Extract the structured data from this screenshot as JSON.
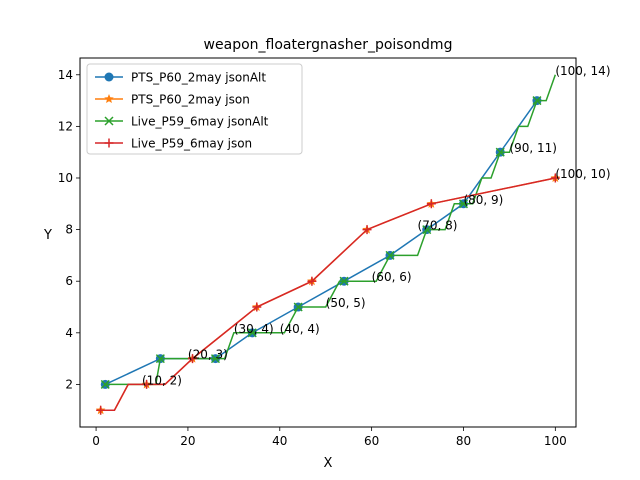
{
  "chart_data": {
    "type": "line",
    "title": "weapon_floatergnasher_poisondmg",
    "xlabel": "X",
    "ylabel": "Y",
    "xlim": [
      -3.5,
      104.5
    ],
    "ylim": [
      0.35,
      14.65
    ],
    "xticks": [
      0,
      20,
      40,
      60,
      80,
      100
    ],
    "yticks": [
      2,
      4,
      6,
      8,
      10,
      12,
      14
    ],
    "grid": false,
    "legend_position": "top-left",
    "series": [
      {
        "name": "PTS_P60_2may jsonAlt",
        "color": "#1f77b4",
        "marker": "circle",
        "points": [
          [
            2,
            2
          ],
          [
            14,
            3
          ],
          [
            26,
            3
          ],
          [
            34,
            4
          ],
          [
            44,
            5
          ],
          [
            54,
            6
          ],
          [
            64,
            7
          ],
          [
            72,
            8
          ],
          [
            80,
            9
          ],
          [
            88,
            11
          ],
          [
            96,
            13
          ]
        ],
        "markers": [
          [
            2,
            2
          ],
          [
            14,
            3
          ],
          [
            26,
            3
          ],
          [
            34,
            4
          ],
          [
            44,
            5
          ],
          [
            54,
            6
          ],
          [
            64,
            7
          ],
          [
            72,
            8
          ],
          [
            80,
            9
          ],
          [
            88,
            11
          ],
          [
            96,
            13
          ]
        ]
      },
      {
        "name": "PTS_P60_2may json",
        "color": "#ff7f0e",
        "marker": "star",
        "points": [
          [
            1,
            1
          ],
          [
            4,
            1
          ],
          [
            7,
            2
          ],
          [
            11,
            2
          ],
          [
            15,
            2
          ],
          [
            21,
            3
          ],
          [
            35,
            5
          ],
          [
            47,
            6
          ],
          [
            59,
            8
          ],
          [
            73,
            9
          ],
          [
            100,
            10
          ]
        ],
        "markers": [
          [
            1,
            1
          ],
          [
            11,
            2
          ],
          [
            21,
            3
          ],
          [
            35,
            5
          ],
          [
            47,
            6
          ],
          [
            59,
            8
          ],
          [
            73,
            9
          ],
          [
            100,
            10
          ]
        ]
      },
      {
        "name": "Live_P59_6may jsonAlt",
        "color": "#2ca02c",
        "marker": "x",
        "points": [
          [
            2,
            2
          ],
          [
            13,
            2
          ],
          [
            14,
            3
          ],
          [
            25,
            3
          ],
          [
            26,
            3
          ],
          [
            28,
            3
          ],
          [
            30,
            4
          ],
          [
            41,
            4
          ],
          [
            44,
            5
          ],
          [
            50,
            5
          ],
          [
            53,
            6
          ],
          [
            61,
            6
          ],
          [
            64,
            7
          ],
          [
            70,
            7
          ],
          [
            72,
            8
          ],
          [
            76,
            8
          ],
          [
            78,
            9
          ],
          [
            82,
            9
          ],
          [
            84,
            10
          ],
          [
            86,
            10
          ],
          [
            88,
            11
          ],
          [
            90,
            11
          ],
          [
            92,
            12
          ],
          [
            94,
            12
          ],
          [
            96,
            13
          ],
          [
            98,
            13
          ],
          [
            100,
            14
          ]
        ],
        "markers": [
          [
            2,
            2
          ],
          [
            14,
            3
          ],
          [
            26,
            3
          ],
          [
            34,
            4
          ],
          [
            44,
            5
          ],
          [
            54,
            6
          ],
          [
            64,
            7
          ],
          [
            72,
            8
          ],
          [
            80,
            9
          ],
          [
            88,
            11
          ],
          [
            96,
            13
          ]
        ]
      },
      {
        "name": "Live_P59_6may json",
        "color": "#d62728",
        "marker": "plus",
        "points": [
          [
            1,
            1
          ],
          [
            4,
            1
          ],
          [
            7,
            2
          ],
          [
            11,
            2
          ],
          [
            15,
            2
          ],
          [
            21,
            3
          ],
          [
            35,
            5
          ],
          [
            47,
            6
          ],
          [
            59,
            8
          ],
          [
            73,
            9
          ],
          [
            100,
            10
          ]
        ],
        "markers": [
          [
            1,
            1
          ],
          [
            11,
            2
          ],
          [
            21,
            3
          ],
          [
            35,
            5
          ],
          [
            47,
            6
          ],
          [
            59,
            8
          ],
          [
            73,
            9
          ],
          [
            100,
            10
          ]
        ]
      }
    ],
    "annotations": [
      {
        "text": "(10, 2)",
        "x": 10,
        "y": 2
      },
      {
        "text": "(20, 3)",
        "x": 20,
        "y": 3
      },
      {
        "text": "(30, 4)",
        "x": 30,
        "y": 4
      },
      {
        "text": "(40, 4)",
        "x": 40,
        "y": 4
      },
      {
        "text": "(50, 5)",
        "x": 50,
        "y": 5
      },
      {
        "text": "(60, 6)",
        "x": 60,
        "y": 6
      },
      {
        "text": "(70, 8)",
        "x": 70,
        "y": 8
      },
      {
        "text": "(80, 9)",
        "x": 80,
        "y": 9
      },
      {
        "text": "(90, 11)",
        "x": 90,
        "y": 11
      },
      {
        "text": "(100, 10)",
        "x": 100,
        "y": 10
      },
      {
        "text": "(100, 14)",
        "x": 100,
        "y": 14
      }
    ]
  }
}
